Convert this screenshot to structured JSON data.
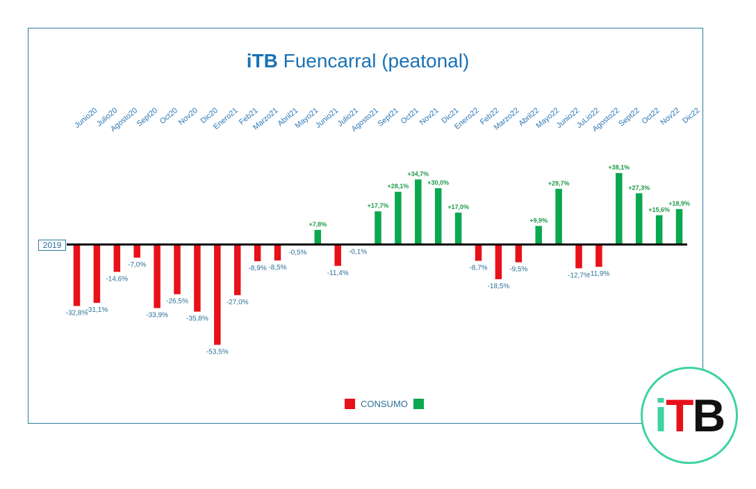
{
  "title": {
    "brand": "iTB",
    "rest": " Fuencarral (peatonal)"
  },
  "baseline_label": "2019",
  "legend": {
    "label": "CONSUMO"
  },
  "colors": {
    "negative": "#e8111a",
    "positive": "#0aa84f",
    "axis": "#000000",
    "accent": "#1a72b5"
  },
  "logo": {
    "i": "i",
    "t": "T",
    "b": "B"
  },
  "chart_data": {
    "type": "bar",
    "title": "iTB Fuencarral (peatonal)",
    "categories": [
      "Junio20",
      "Julio20",
      "Agosto20",
      "Sept20",
      "Oct20",
      "Nov20",
      "Dic20",
      "Enero21",
      "Feb21",
      "Marzo21",
      "Abril21",
      "Mayo21",
      "Junio21",
      "Julio21",
      "Agosto21",
      "Sept21",
      "Oct21",
      "Nov21",
      "Dic21",
      "Enero22",
      "Feb22",
      "Marzo22",
      "Abril22",
      "Mayo22",
      "Junio22",
      "JuLio22",
      "Agosto22",
      "Sept22",
      "Oct22",
      "Nov22",
      "Dic22"
    ],
    "values": [
      -32.8,
      -31.1,
      -14.6,
      -7.0,
      -33.9,
      -26.5,
      -35.8,
      -53.5,
      -27.0,
      -8.9,
      -8.5,
      -0.5,
      7.8,
      -11.4,
      -0.1,
      17.7,
      28.1,
      34.7,
      30.0,
      17.0,
      -8.7,
      -18.5,
      -9.5,
      9.9,
      29.7,
      -12.7,
      -11.9,
      38.1,
      27.3,
      15.6,
      18.9
    ],
    "labels": [
      "-32,8%",
      "-31,1%",
      "-14,6%",
      "-7,0%",
      "-33,9%",
      "-26,5%",
      "-35,8%",
      "-53,5%",
      "-27,0%",
      "-8,9%",
      "-8,5%",
      "-0,5%",
      "+7,8%",
      "-11,4%",
      "-0,1%",
      "+17,7%",
      "+28,1%",
      "+34,7%",
      "+30,0%",
      "+17,0%",
      "-8,7%",
      "-18,5%",
      "-9,5%",
      "+9,9%",
      "+29,7%",
      "-12,7%",
      "-11,9%",
      "+38,1%",
      "+27,3%",
      "+15,6%",
      "+18,9%"
    ],
    "baseline": "2019",
    "legend": [
      "CONSUMO"
    ],
    "grid": false,
    "legend_position": "bottom"
  }
}
